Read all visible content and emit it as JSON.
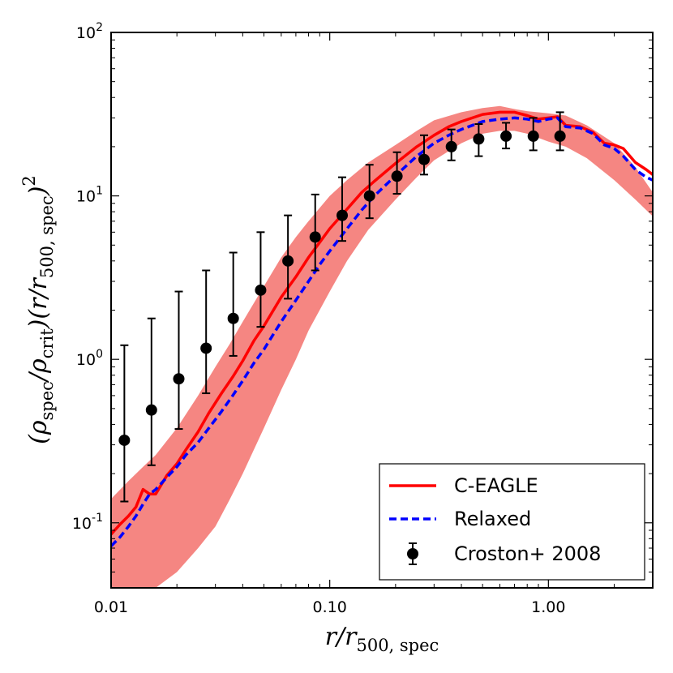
{
  "chart_data": {
    "type": "line",
    "xscale": "log",
    "yscale": "log",
    "xlim": [
      0.01,
      3.0
    ],
    "ylim": [
      0.04,
      100
    ],
    "xlabel": "r/r500,spec",
    "ylabel": "(ρspec/ρcrit)(r/r500,spec)²",
    "x_ticks": [
      {
        "value": 0.01,
        "label": "0.01"
      },
      {
        "value": 0.1,
        "label": "0.10"
      },
      {
        "value": 1.0,
        "label": "1.00"
      }
    ],
    "y_ticks": [
      {
        "value": 0.1,
        "base": "10",
        "exp": "-1"
      },
      {
        "value": 1,
        "base": "10",
        "exp": "0"
      },
      {
        "value": 10,
        "base": "10",
        "exp": "1"
      },
      {
        "value": 100,
        "base": "10",
        "exp": "2"
      }
    ],
    "grid": false,
    "legend_position": "bottom-right",
    "band": {
      "color": "#f47f7b",
      "x": [
        0.01,
        0.012,
        0.014,
        0.016,
        0.02,
        0.025,
        0.03,
        0.035,
        0.04,
        0.05,
        0.06,
        0.07,
        0.08,
        0.1,
        0.12,
        0.15,
        0.2,
        0.25,
        0.3,
        0.4,
        0.5,
        0.6,
        0.7,
        0.8,
        1.0,
        1.2,
        1.5,
        2.0,
        2.5,
        3.0
      ],
      "upper": [
        0.14,
        0.18,
        0.22,
        0.26,
        0.38,
        0.6,
        0.9,
        1.25,
        1.7,
        2.8,
        4.2,
        5.6,
        7.0,
        10.0,
        12.5,
        16.0,
        20.5,
        25.0,
        29.0,
        32.5,
        34.5,
        35.5,
        34.0,
        33.0,
        32.0,
        31.0,
        27.0,
        21.0,
        15.0,
        10.5
      ],
      "lower": [
        0.025,
        0.03,
        0.035,
        0.04,
        0.05,
        0.07,
        0.095,
        0.14,
        0.2,
        0.38,
        0.65,
        1.0,
        1.5,
        2.6,
        4.0,
        6.2,
        9.5,
        13.0,
        16.5,
        21.0,
        24.0,
        25.0,
        25.0,
        24.0,
        21.5,
        20.0,
        17.0,
        12.5,
        9.5,
        7.5
      ]
    },
    "series": [
      {
        "name": "C-EAGLE",
        "color": "#ff0000",
        "style": "solid",
        "x": [
          0.01,
          0.011,
          0.012,
          0.013,
          0.014,
          0.015,
          0.016,
          0.018,
          0.02,
          0.022,
          0.025,
          0.028,
          0.032,
          0.036,
          0.04,
          0.045,
          0.05,
          0.06,
          0.07,
          0.08,
          0.09,
          0.1,
          0.12,
          0.14,
          0.16,
          0.2,
          0.25,
          0.3,
          0.35,
          0.4,
          0.5,
          0.6,
          0.7,
          0.8,
          0.9,
          1.0,
          1.1,
          1.2,
          1.4,
          1.6,
          1.8,
          2.0,
          2.2,
          2.5,
          2.8,
          3.0
        ],
        "y": [
          0.085,
          0.098,
          0.11,
          0.125,
          0.16,
          0.15,
          0.15,
          0.195,
          0.23,
          0.28,
          0.36,
          0.47,
          0.62,
          0.78,
          0.98,
          1.3,
          1.6,
          2.4,
          3.2,
          4.2,
          5.2,
          6.3,
          8.3,
          10.5,
          12.3,
          15.8,
          20.0,
          23.5,
          26.5,
          28.5,
          31.5,
          32.5,
          32.5,
          31.0,
          29.5,
          30.0,
          30.5,
          27.0,
          26.5,
          24.5,
          21.0,
          20.5,
          19.5,
          16.0,
          14.5,
          13.5
        ]
      },
      {
        "name": "Relaxed",
        "color": "#0000ff",
        "style": "dashed",
        "x": [
          0.01,
          0.011,
          0.012,
          0.013,
          0.014,
          0.015,
          0.016,
          0.018,
          0.02,
          0.022,
          0.025,
          0.028,
          0.032,
          0.036,
          0.04,
          0.045,
          0.05,
          0.06,
          0.07,
          0.08,
          0.09,
          0.1,
          0.12,
          0.14,
          0.16,
          0.2,
          0.25,
          0.3,
          0.35,
          0.4,
          0.5,
          0.6,
          0.7,
          0.8,
          0.9,
          1.0,
          1.1,
          1.2,
          1.4,
          1.6,
          1.8,
          2.0,
          2.2,
          2.5,
          2.8,
          3.0
        ],
        "y": [
          0.072,
          0.082,
          0.095,
          0.11,
          0.13,
          0.15,
          0.16,
          0.19,
          0.22,
          0.26,
          0.31,
          0.38,
          0.48,
          0.6,
          0.74,
          0.95,
          1.15,
          1.7,
          2.3,
          3.0,
          3.8,
          4.6,
          6.3,
          8.2,
          10.0,
          13.3,
          17.5,
          21.0,
          23.5,
          25.5,
          28.5,
          29.5,
          30.0,
          29.5,
          28.5,
          29.5,
          30.0,
          26.5,
          26.0,
          24.0,
          20.5,
          19.5,
          17.5,
          14.5,
          13.0,
          12.5
        ]
      }
    ],
    "errorbar_series": {
      "name": "Croston+ 2008",
      "color": "#000000",
      "points": [
        {
          "x": 0.0115,
          "y": 0.32,
          "lo": 0.135,
          "hi": 1.22
        },
        {
          "x": 0.0153,
          "y": 0.49,
          "lo": 0.225,
          "hi": 1.78
        },
        {
          "x": 0.0204,
          "y": 0.76,
          "lo": 0.375,
          "hi": 2.6
        },
        {
          "x": 0.0272,
          "y": 1.17,
          "lo": 0.62,
          "hi": 3.5
        },
        {
          "x": 0.0362,
          "y": 1.78,
          "lo": 1.05,
          "hi": 4.5
        },
        {
          "x": 0.0483,
          "y": 2.65,
          "lo": 1.58,
          "hi": 6.0
        },
        {
          "x": 0.0644,
          "y": 4.0,
          "lo": 2.35,
          "hi": 7.6
        },
        {
          "x": 0.0858,
          "y": 5.6,
          "lo": 3.5,
          "hi": 10.2
        },
        {
          "x": 0.114,
          "y": 7.6,
          "lo": 5.3,
          "hi": 13.0
        },
        {
          "x": 0.152,
          "y": 10.0,
          "lo": 7.3,
          "hi": 15.5
        },
        {
          "x": 0.203,
          "y": 13.2,
          "lo": 10.3,
          "hi": 18.5
        },
        {
          "x": 0.27,
          "y": 16.7,
          "lo": 13.5,
          "hi": 23.5
        },
        {
          "x": 0.36,
          "y": 20.0,
          "lo": 16.5,
          "hi": 25.5
        },
        {
          "x": 0.48,
          "y": 22.3,
          "lo": 17.5,
          "hi": 27.5
        },
        {
          "x": 0.64,
          "y": 23.2,
          "lo": 19.5,
          "hi": 28.0
        },
        {
          "x": 0.853,
          "y": 23.2,
          "lo": 19.0,
          "hi": 30.0
        },
        {
          "x": 1.13,
          "y": 23.2,
          "lo": 19.0,
          "hi": 32.5
        }
      ]
    }
  }
}
